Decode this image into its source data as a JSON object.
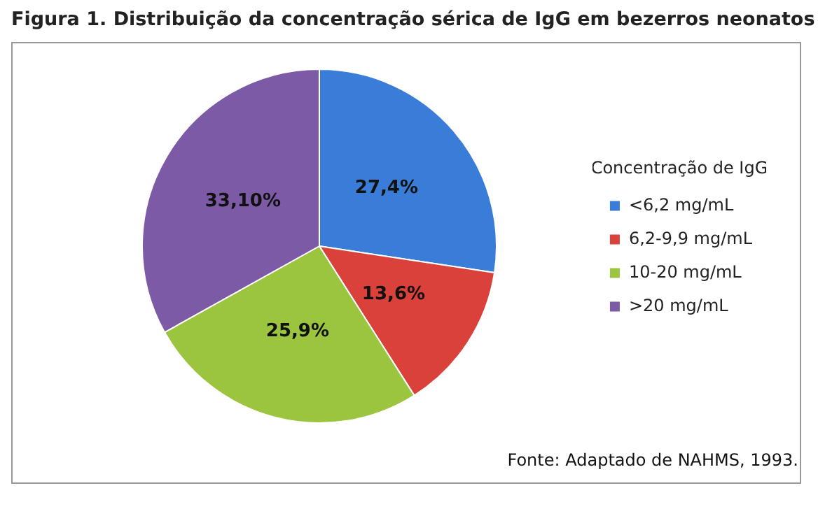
{
  "chart_data": {
    "type": "pie",
    "title": "Figura 1. Distribuição da concentração sérica de IgG em bezerros neonatos",
    "legend_title": "Concentração de IgG",
    "categories": [
      "<6,2 mg/mL",
      "6,2-9,9 mg/mL",
      "10-20 mg/mL",
      ">20 mg/mL"
    ],
    "values": [
      27.4,
      13.6,
      25.9,
      33.1
    ],
    "value_labels": [
      "27,4%",
      "13,6%",
      "25,9%",
      "33,10%"
    ],
    "colors": [
      "#3a7dd8",
      "#d9413a",
      "#9bc43f",
      "#7d5aa6"
    ],
    "legend": "right",
    "annotations": [
      "Fonte: Adaptado de NAHMS, 1993."
    ]
  }
}
